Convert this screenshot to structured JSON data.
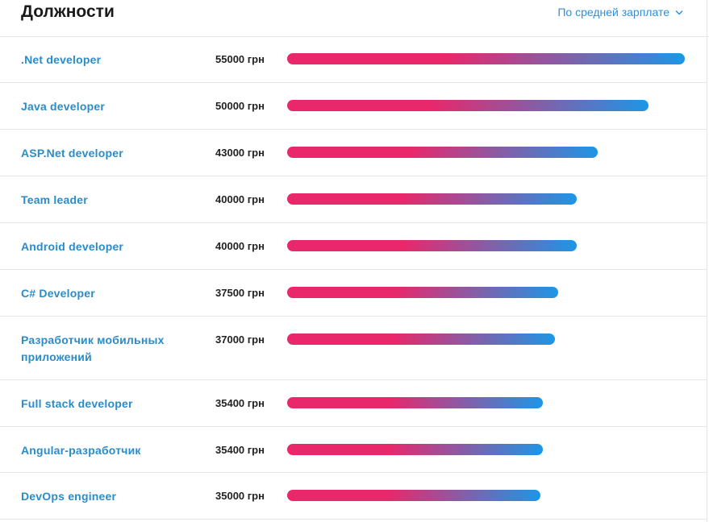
{
  "header": {
    "title": "Должности",
    "sort_label": "По средней зарплате",
    "sort_icon": "chevron-down-icon"
  },
  "colors": {
    "bar_start": "#e8286b",
    "bar_end": "#1d96e6",
    "link": "#2a8cc9",
    "accent": "#2f8fd8"
  },
  "chart_data": {
    "type": "bar",
    "orientation": "horizontal",
    "unit": "грн",
    "categories": [
      ".Net developer",
      "Java developer",
      "ASP.Net developer",
      "Team leader",
      "Android developer",
      "C# Developer",
      "Разработчик мобильных приложений",
      "Full stack developer",
      "Angular-разработчик",
      "DevOps engineer"
    ],
    "values": [
      55000,
      50000,
      43000,
      40000,
      40000,
      37500,
      37000,
      35400,
      35400,
      35000
    ],
    "value_labels": [
      "55000 грн",
      "50000 грн",
      "43000 грн",
      "40000 грн",
      "40000 грн",
      "37500 грн",
      "37000 грн",
      "35400 грн",
      "35400 грн",
      "35000 грн"
    ]
  }
}
